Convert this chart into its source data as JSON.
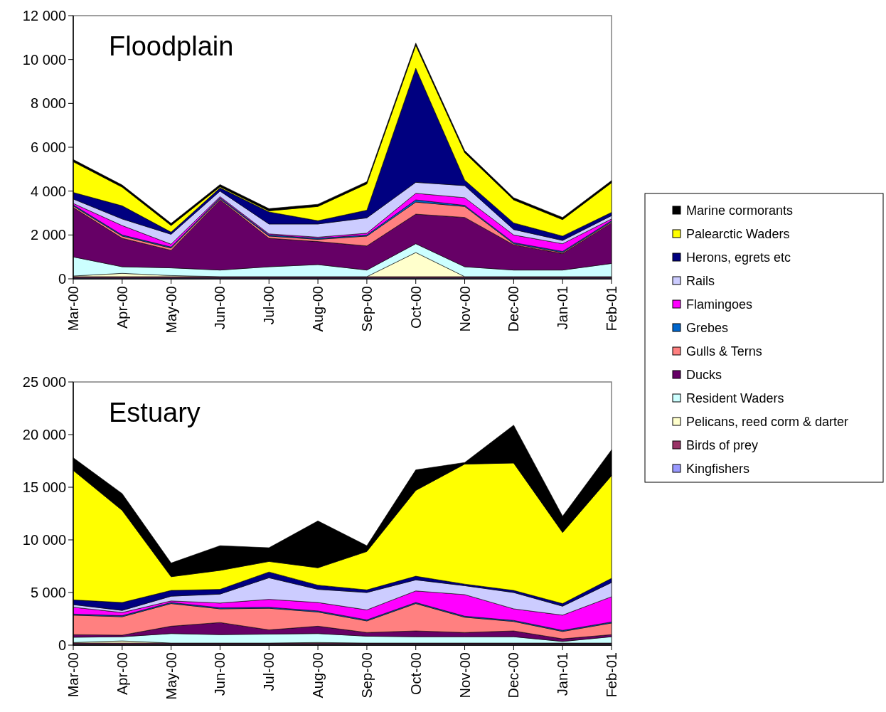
{
  "chart_data": [
    {
      "type": "area",
      "stacked": true,
      "title": "Floodplain",
      "categories": [
        "Mar-00",
        "Apr-00",
        "May-00",
        "Jun-00",
        "Jul-00",
        "Aug-00",
        "Sep-00",
        "Oct-00",
        "Nov-00",
        "Dec-00",
        "Jan-01",
        "Feb-01"
      ],
      "ylim": [
        0,
        12000
      ],
      "yticks": [
        {
          "value": 0,
          "label": "0"
        },
        {
          "value": 2000,
          "label": "2 000"
        },
        {
          "value": 4000,
          "label": "4 000"
        },
        {
          "value": 6000,
          "label": "6 000"
        },
        {
          "value": 8000,
          "label": "8 000"
        },
        {
          "value": 10000,
          "label": "10 000"
        },
        {
          "value": 12000,
          "label": "12 000"
        }
      ],
      "legend": "right",
      "series": [
        {
          "name": "Kingfishers",
          "color": "#9999ff",
          "values": [
            50,
            50,
            50,
            50,
            50,
            50,
            50,
            50,
            50,
            50,
            50,
            50
          ]
        },
        {
          "name": "Birds of prey",
          "color": "#993366",
          "values": [
            50,
            50,
            50,
            50,
            50,
            50,
            50,
            50,
            50,
            50,
            50,
            50
          ]
        },
        {
          "name": "Pelicans, reed corm & darter",
          "color": "#ffffcc",
          "values": [
            30,
            150,
            50,
            0,
            0,
            0,
            0,
            1100,
            0,
            0,
            0,
            0
          ]
        },
        {
          "name": "Resident Waders",
          "color": "#ccffff",
          "values": [
            870,
            300,
            350,
            300,
            450,
            550,
            300,
            400,
            450,
            300,
            300,
            600
          ]
        },
        {
          "name": "Ducks",
          "color": "#660066",
          "values": [
            2250,
            1300,
            800,
            3200,
            1300,
            1050,
            1100,
            1350,
            2250,
            1150,
            750,
            1850
          ]
        },
        {
          "name": "Gulls & Terns",
          "color": "#ff8080",
          "values": [
            70,
            100,
            100,
            50,
            100,
            100,
            450,
            550,
            500,
            50,
            50,
            50
          ]
        },
        {
          "name": "Grebes",
          "color": "#0066cc",
          "values": [
            50,
            50,
            50,
            50,
            50,
            50,
            50,
            100,
            50,
            50,
            50,
            50
          ]
        },
        {
          "name": "Flamingoes",
          "color": "#ff00ff",
          "values": [
            70,
            430,
            130,
            50,
            50,
            50,
            80,
            300,
            350,
            350,
            350,
            80
          ]
        },
        {
          "name": "Rails",
          "color": "#ccccff",
          "values": [
            200,
            300,
            450,
            250,
            450,
            600,
            700,
            500,
            550,
            250,
            150,
            150
          ]
        },
        {
          "name": "Herons, egrets etc",
          "color": "#000080",
          "values": [
            300,
            600,
            100,
            150,
            550,
            150,
            350,
            5200,
            250,
            300,
            200,
            150
          ]
        },
        {
          "name": "Palearctic Waders",
          "color": "#ffff00",
          "values": [
            1400,
            850,
            300,
            50,
            50,
            650,
            1200,
            1050,
            1250,
            1050,
            750,
            1350
          ]
        },
        {
          "name": "Marine cormorants",
          "color": "#000000",
          "values": [
            100,
            100,
            100,
            100,
            100,
            100,
            100,
            100,
            100,
            100,
            100,
            100
          ]
        }
      ]
    },
    {
      "type": "area",
      "stacked": true,
      "title": "Estuary",
      "categories": [
        "Mar-00",
        "Apr-00",
        "May-00",
        "Jun-00",
        "Jul-00",
        "Aug-00",
        "Sep-00",
        "Oct-00",
        "Nov-00",
        "Dec-00",
        "Jan-01",
        "Feb-01"
      ],
      "ylim": [
        0,
        25000
      ],
      "yticks": [
        {
          "value": 0,
          "label": "0"
        },
        {
          "value": 5000,
          "label": "5 000"
        },
        {
          "value": 10000,
          "label": "10 000"
        },
        {
          "value": 15000,
          "label": "15 000"
        },
        {
          "value": 20000,
          "label": "20 000"
        },
        {
          "value": 25000,
          "label": "25 000"
        }
      ],
      "series": [
        {
          "color": "#9999ff",
          "values": [
            100,
            100,
            100,
            100,
            100,
            100,
            100,
            100,
            100,
            100,
            100,
            100
          ]
        },
        {
          "color": "#993366",
          "values": [
            100,
            100,
            100,
            100,
            100,
            100,
            100,
            100,
            100,
            100,
            100,
            100
          ]
        },
        {
          "color": "#ffffcc",
          "values": [
            50,
            200,
            0,
            0,
            0,
            50,
            0,
            0,
            0,
            0,
            0,
            0
          ]
        },
        {
          "color": "#ccffff",
          "values": [
            500,
            400,
            900,
            800,
            850,
            850,
            650,
            600,
            600,
            600,
            150,
            600
          ]
        },
        {
          "color": "#660066",
          "values": [
            250,
            150,
            700,
            1150,
            400,
            700,
            350,
            550,
            400,
            550,
            250,
            200
          ]
        },
        {
          "color": "#ff8080",
          "values": [
            1850,
            1750,
            2150,
            1300,
            2050,
            1350,
            1100,
            2600,
            1450,
            900,
            700,
            1100
          ]
        },
        {
          "color": "#0066cc",
          "values": [
            100,
            100,
            100,
            100,
            100,
            100,
            100,
            100,
            100,
            100,
            100,
            100
          ]
        },
        {
          "color": "#ff00ff",
          "values": [
            650,
            300,
            150,
            450,
            750,
            800,
            950,
            1100,
            2050,
            1100,
            1450,
            2400
          ]
        },
        {
          "color": "#ccccff",
          "values": [
            250,
            200,
            450,
            850,
            2050,
            1250,
            1650,
            1050,
            850,
            1550,
            850,
            1350
          ]
        },
        {
          "color": "#000080",
          "values": [
            450,
            750,
            550,
            450,
            550,
            400,
            250,
            350,
            150,
            200,
            250,
            400
          ]
        },
        {
          "color": "#ffff00",
          "values": [
            12300,
            8750,
            1300,
            1800,
            1000,
            1650,
            3650,
            8150,
            11400,
            12100,
            6750,
            9750
          ]
        },
        {
          "color": "#000000",
          "values": [
            1200,
            1600,
            1300,
            2350,
            1300,
            4450,
            550,
            1950,
            150,
            3600,
            1550,
            2450
          ]
        }
      ]
    }
  ]
}
